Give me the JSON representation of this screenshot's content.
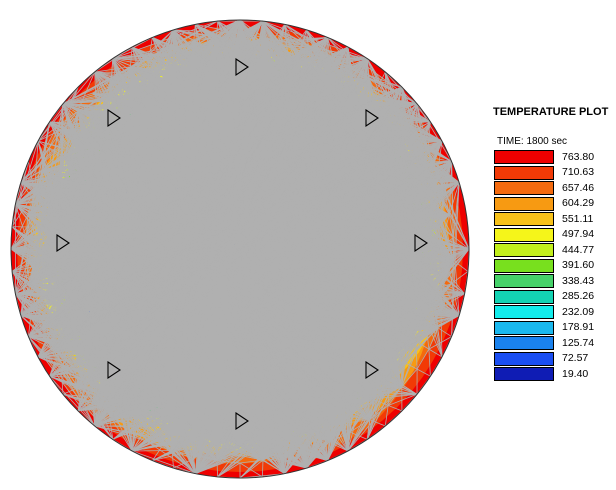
{
  "legend": {
    "title": "TEMPERATURE PLOT",
    "time": "TIME: 1800 sec",
    "entries": [
      {
        "value": "763.80",
        "color": "#ee0000"
      },
      {
        "value": "710.63",
        "color": "#f23a06"
      },
      {
        "value": "657.46",
        "color": "#f46a0e"
      },
      {
        "value": "604.29",
        "color": "#f79a12"
      },
      {
        "value": "551.11",
        "color": "#f8c21a"
      },
      {
        "value": "497.94",
        "color": "#f5f51a"
      },
      {
        "value": "444.77",
        "color": "#c2ef1c"
      },
      {
        "value": "391.60",
        "color": "#78e01e"
      },
      {
        "value": "338.43",
        "color": "#46d26a"
      },
      {
        "value": "285.26",
        "color": "#13d3b3"
      },
      {
        "value": "232.09",
        "color": "#12ecec"
      },
      {
        "value": "178.91",
        "color": "#1ab8ee"
      },
      {
        "value": "125.74",
        "color": "#1a82ee"
      },
      {
        "value": "72.57",
        "color": "#1a4ef2"
      },
      {
        "value": "19.40",
        "color": "#0f1cb4"
      }
    ]
  },
  "plot": {
    "shape": "circular cross-section",
    "mesh": "triangular finite-element mesh",
    "markers": "triangle-markers",
    "mesh_color": "#b0b0b0",
    "outline_color": "#333333"
  }
}
